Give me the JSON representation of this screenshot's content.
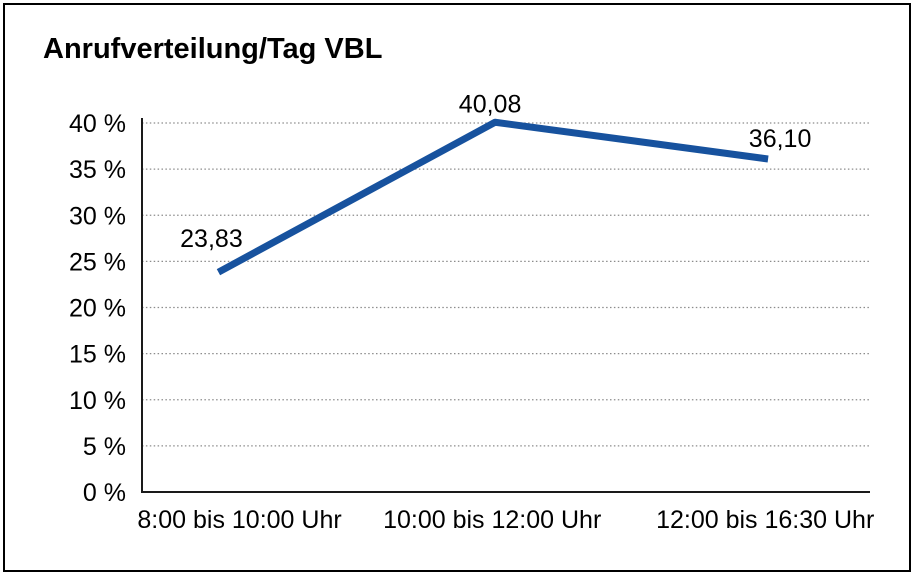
{
  "page": {
    "background": "#ffffff",
    "frame_border_color": "#000000"
  },
  "chart_data": {
    "type": "line",
    "title": "Anrufverteilung/Tag VBL",
    "categories": [
      "8:00 bis 10:00 Uhr",
      "10:00 bis 12:00 Uhr",
      "12:00 bis 16:30 Uhr"
    ],
    "series": [
      {
        "name": "Anrufverteilung",
        "values": [
          23.83,
          40.08,
          36.1
        ],
        "data_labels": [
          "23,83",
          "40,08",
          "36,10"
        ],
        "color": "#17529E"
      }
    ],
    "xlabel": "",
    "ylabel": "",
    "ylim": [
      0,
      40
    ],
    "ytick_step": 5,
    "ytick_labels": [
      "0 %",
      "5 %",
      "10 %",
      "15 %",
      "20 %",
      "25 %",
      "30 %",
      "35 %",
      "40 %"
    ],
    "grid": "horizontal-dotted",
    "gridline_color": "#8c8c8c",
    "axis_color": "#1a1a1a",
    "legend": "none",
    "markers": "none"
  }
}
